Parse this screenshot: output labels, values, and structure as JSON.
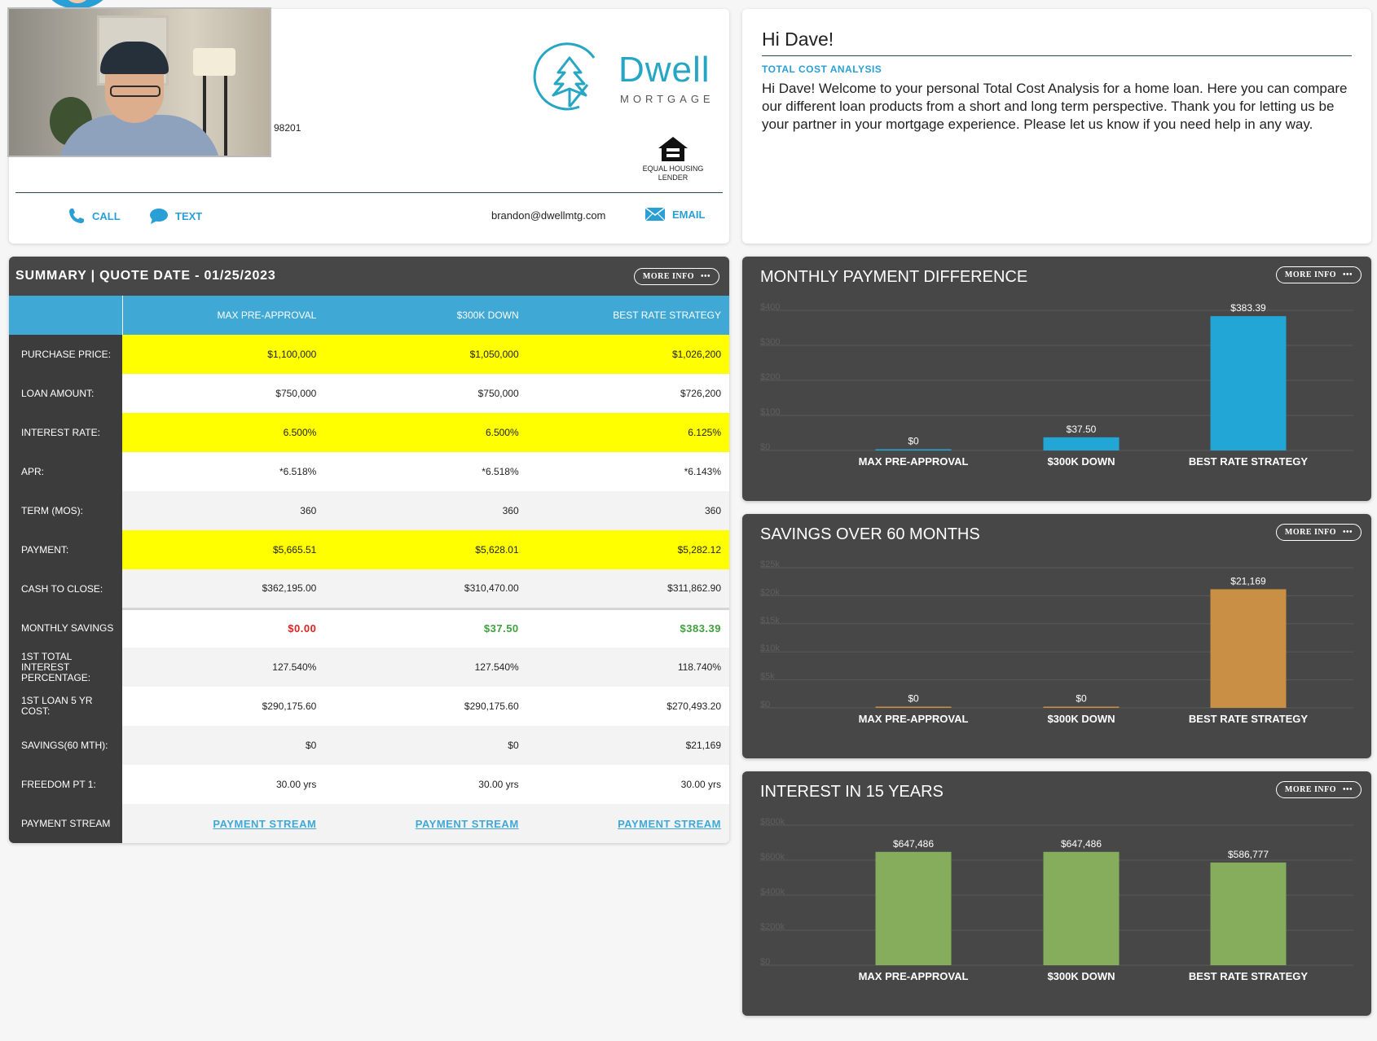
{
  "contact": {
    "zip_fragment": "98201",
    "logo_name": "Dwell",
    "logo_sub": "MORTGAGE",
    "ehl_label": "EQUAL HOUSING LENDER",
    "call_label": "CALL",
    "text_label": "TEXT",
    "email_address": "brandon@dwellmtg.com",
    "email_label": "EMAIL",
    "icons": {
      "call": "phone-icon",
      "text": "chat-bubble-icon",
      "email": "envelope-icon",
      "ehl": "equal-housing-icon"
    }
  },
  "intro": {
    "greeting": "Hi Dave!",
    "subtitle": "TOTAL COST ANALYSIS",
    "body": "Hi Dave! Welcome to your personal Total Cost Analysis for a home loan. Here you can compare our different loan products from a short and long term perspective. Thank you for letting us be your partner in your mortgage experience. Please let us know if you need help in any way."
  },
  "summary": {
    "title": "SUMMARY | QUOTE DATE - 01/25/2023",
    "more_info": "MORE INFO",
    "columns": [
      "MAX PRE-APPROVAL",
      "$300K DOWN",
      "BEST RATE STRATEGY"
    ],
    "rows": [
      {
        "label": "PURCHASE PRICE:",
        "values": [
          "$1,100,000",
          "$1,050,000",
          "$1,026,200"
        ],
        "style": "hl"
      },
      {
        "label": "LOAN AMOUNT:",
        "values": [
          "$750,000",
          "$750,000",
          "$726,200"
        ],
        "style": ""
      },
      {
        "label": "INTEREST RATE:",
        "values": [
          "6.500%",
          "6.500%",
          "6.125%"
        ],
        "style": "hl"
      },
      {
        "label": "APR:",
        "values": [
          "*6.518%",
          "*6.518%",
          "*6.143%"
        ],
        "style": ""
      },
      {
        "label": "TERM (MOS):",
        "values": [
          "360",
          "360",
          "360"
        ],
        "style": "alt"
      },
      {
        "label": "PAYMENT:",
        "values": [
          "$5,665.51",
          "$5,628.01",
          "$5,282.12"
        ],
        "style": "hl"
      },
      {
        "label": "CASH TO CLOSE:",
        "values": [
          "$362,195.00",
          "$310,470.00",
          "$311,862.90"
        ],
        "style": "alt"
      },
      {
        "label": "MONTHLY SAVINGS",
        "values": [
          "$0.00",
          "$37.50",
          "$383.39"
        ],
        "style": "sep",
        "value_styles": [
          "sv-red",
          "sv-green",
          "sv-green"
        ]
      },
      {
        "label": "1ST TOTAL INTEREST PERCENTAGE:",
        "values": [
          "127.540%",
          "127.540%",
          "118.740%"
        ],
        "style": "alt"
      },
      {
        "label": "1ST LOAN 5 YR COST:",
        "values": [
          "$290,175.60",
          "$290,175.60",
          "$270,493.20"
        ],
        "style": ""
      },
      {
        "label": "SAVINGS(60 MTH):",
        "values": [
          "$0",
          "$0",
          "$21,169"
        ],
        "style": "alt"
      },
      {
        "label": "FREEDOM PT 1:",
        "values": [
          "30.00 yrs",
          "30.00 yrs",
          "30.00 yrs"
        ],
        "style": ""
      },
      {
        "label": "PAYMENT STREAM",
        "values": [
          "PAYMENT STREAM",
          "PAYMENT STREAM",
          "PAYMENT STREAM"
        ],
        "style": "alt",
        "value_styles": [
          "ps-link",
          "ps-link",
          "ps-link"
        ]
      }
    ]
  },
  "chart_data": [
    {
      "type": "bar",
      "title": "MONTHLY PAYMENT DIFFERENCE",
      "more_info": "MORE INFO",
      "categories": [
        "MAX PRE-APPROVAL",
        "$300K DOWN",
        "BEST RATE STRATEGY"
      ],
      "values": [
        0,
        37.5,
        383.39
      ],
      "value_labels": [
        "$0",
        "$37.50",
        "$383.39"
      ],
      "yticks": [
        "$0",
        "$100",
        "$200",
        "$300",
        "$400"
      ],
      "ylim": [
        0,
        400
      ],
      "color": "#22a6d6",
      "grid": true
    },
    {
      "type": "bar",
      "title": "SAVINGS OVER 60 MONTHS",
      "more_info": "MORE INFO",
      "categories": [
        "MAX PRE-APPROVAL",
        "$300K DOWN",
        "BEST RATE STRATEGY"
      ],
      "values": [
        0,
        0,
        21169
      ],
      "value_labels": [
        "$0",
        "$0",
        "$21,169"
      ],
      "yticks": [
        "$0",
        "$5k",
        "$10k",
        "$15k",
        "$20k",
        "$25k"
      ],
      "ylim": [
        0,
        25000
      ],
      "color": "#c98f44",
      "grid": true
    },
    {
      "type": "bar",
      "title": "INTEREST IN 15 YEARS",
      "more_info": "MORE INFO",
      "categories": [
        "MAX PRE-APPROVAL",
        "$300K DOWN",
        "BEST RATE STRATEGY"
      ],
      "values": [
        647486,
        647486,
        586777
      ],
      "value_labels": [
        "$647,486",
        "$647,486",
        "$586,777"
      ],
      "yticks": [
        "$0",
        "$200k",
        "$400k",
        "$600k",
        "$800k"
      ],
      "ylim": [
        0,
        800000
      ],
      "color": "#86ad5c",
      "grid": true
    }
  ]
}
